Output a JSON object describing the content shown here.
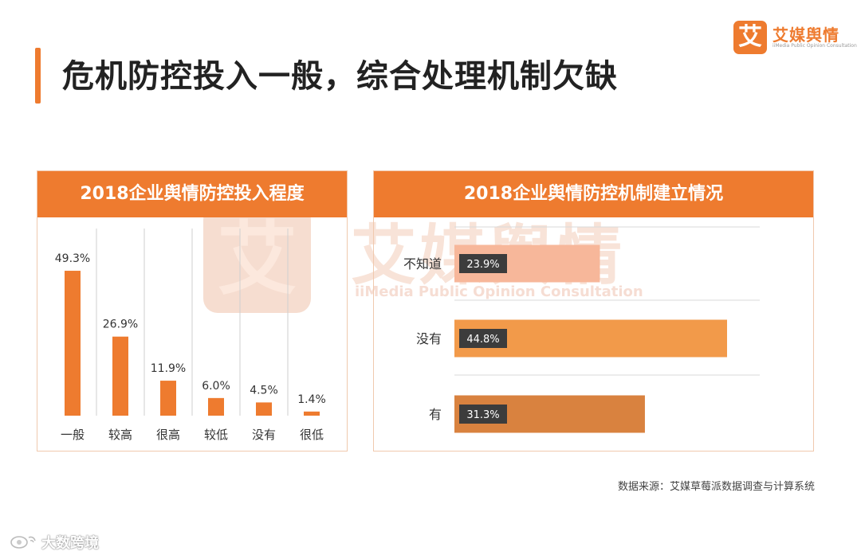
{
  "page": {
    "title": "危机防控投入一般，综合处理机制欠缺",
    "source": "数据来源：艾媒草莓派数据调查与计算系统"
  },
  "brand": {
    "mark": "艾",
    "name": "艾媒舆情",
    "subtitle": "iiMedia Public Opinion Consultation"
  },
  "watermark": {
    "mark": "艾",
    "name": "艾媒舆情",
    "subtitle": "iiMedia Public Opinion Consultation"
  },
  "bottom_logo": {
    "text": "大数跨境",
    "icon": "weibo-eye-icon"
  },
  "colors": {
    "accent": "#ee7b2f",
    "bar_light": "#f7b79a",
    "bar_mid": "#f29a4a",
    "bar_dark": "#d9823f",
    "label_bg": "#3c3c3c"
  },
  "chart_data": [
    {
      "type": "bar",
      "title": "2018企业舆情防控投入程度",
      "categories": [
        "一般",
        "较高",
        "很高",
        "较低",
        "没有",
        "很低"
      ],
      "values": [
        49.3,
        26.9,
        11.9,
        6.0,
        4.5,
        1.4
      ],
      "value_labels": [
        "49.3%",
        "26.9%",
        "11.9%",
        "6.0%",
        "4.5%",
        "1.4%"
      ],
      "xlabel": "",
      "ylabel": "",
      "ylim": [
        0,
        55
      ],
      "grid": false
    },
    {
      "type": "bar",
      "orientation": "horizontal",
      "title": "2018企业舆情防控机制建立情况",
      "categories": [
        "不知道",
        "没有",
        "有"
      ],
      "values": [
        23.9,
        44.8,
        31.3
      ],
      "value_labels": [
        "23.9%",
        "44.8%",
        "31.3%"
      ],
      "xlabel": "",
      "ylabel": "",
      "xlim": [
        0,
        50
      ],
      "grid": false
    }
  ]
}
